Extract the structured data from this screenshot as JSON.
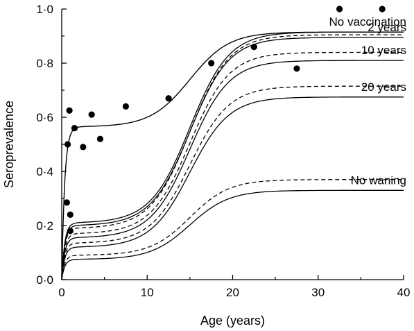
{
  "chart_data": {
    "type": "scatter",
    "title": "",
    "xlabel": "Age (years)",
    "ylabel": "Seroprevalence",
    "xlim": [
      0,
      40
    ],
    "ylim": [
      0,
      1
    ],
    "x_ticks": [
      {
        "value": 0,
        "label": "0"
      },
      {
        "value": 10,
        "label": "10"
      },
      {
        "value": 20,
        "label": "20"
      },
      {
        "value": 30,
        "label": "30"
      },
      {
        "value": 40,
        "label": "40"
      }
    ],
    "y_ticks": [
      {
        "value": 0,
        "label": "0·0"
      },
      {
        "value": 0.2,
        "label": "0·2"
      },
      {
        "value": 0.4,
        "label": "0·4"
      },
      {
        "value": 0.6,
        "label": "0·6"
      },
      {
        "value": 0.8,
        "label": "0·8"
      },
      {
        "value": 1.0,
        "label": "1·0"
      }
    ],
    "grid": false,
    "observed_points": [
      {
        "x": 0.6,
        "y": 0.285
      },
      {
        "x": 0.7,
        "y": 0.5
      },
      {
        "x": 0.9,
        "y": 0.625
      },
      {
        "x": 1.0,
        "y": 0.18
      },
      {
        "x": 1.0,
        "y": 0.24
      },
      {
        "x": 1.5,
        "y": 0.56
      },
      {
        "x": 2.5,
        "y": 0.49
      },
      {
        "x": 3.5,
        "y": 0.61
      },
      {
        "x": 4.5,
        "y": 0.52
      },
      {
        "x": 7.5,
        "y": 0.64
      },
      {
        "x": 12.5,
        "y": 0.67
      },
      {
        "x": 17.5,
        "y": 0.8
      },
      {
        "x": 22.5,
        "y": 0.86
      },
      {
        "x": 27.5,
        "y": 0.78
      },
      {
        "x": 32.5,
        "y": 1.0
      },
      {
        "x": 37.5,
        "y": 1.0
      }
    ],
    "baseline_curve": {
      "style": "solid",
      "plateau_early": 0.565,
      "plateau_late": 0.915
    },
    "curves": [
      {
        "label": "No vaccination",
        "style": "solid",
        "plateau_early": 0.21,
        "plateau_late": 0.915
      },
      {
        "label": "",
        "style": "dashed",
        "plateau_early": 0.19,
        "plateau_late": 0.905
      },
      {
        "label": "2 years",
        "style": "solid",
        "plateau_early": 0.2,
        "plateau_late": 0.895
      },
      {
        "label": "",
        "style": "dashed",
        "plateau_early": 0.17,
        "plateau_late": 0.84
      },
      {
        "label": "10 years",
        "style": "solid",
        "plateau_early": 0.155,
        "plateau_late": 0.81
      },
      {
        "label": "",
        "style": "dashed",
        "plateau_early": 0.135,
        "plateau_late": 0.715
      },
      {
        "label": "20 years",
        "style": "solid",
        "plateau_early": 0.12,
        "plateau_late": 0.675
      },
      {
        "label": "",
        "style": "dashed",
        "plateau_early": 0.09,
        "plateau_late": 0.37
      },
      {
        "label": "No waning",
        "style": "solid",
        "plateau_early": 0.075,
        "plateau_late": 0.33
      }
    ]
  }
}
